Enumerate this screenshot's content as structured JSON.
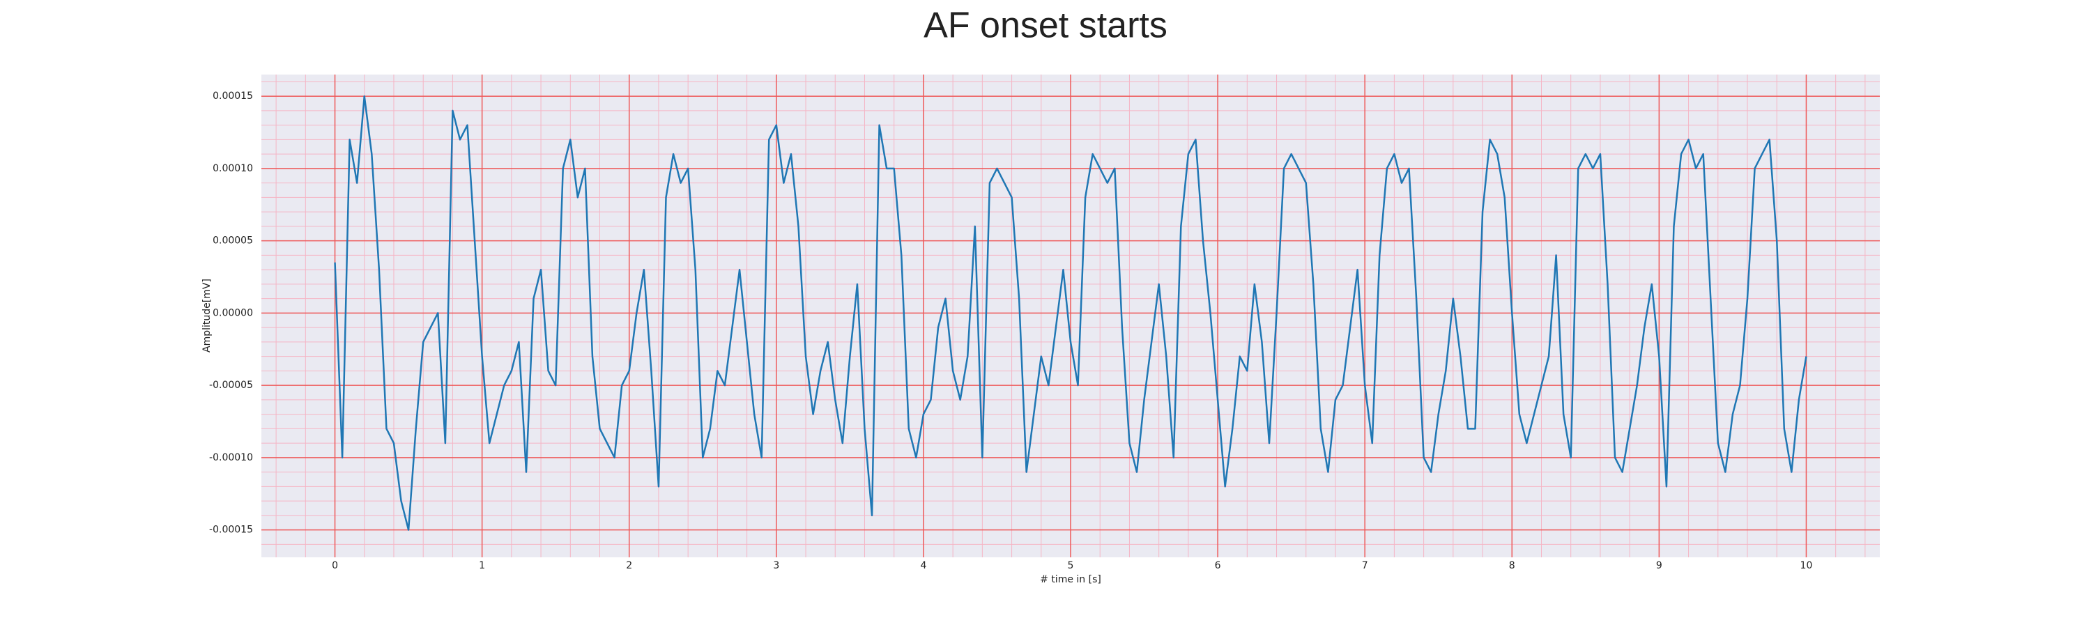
{
  "chart_data": {
    "type": "line",
    "title": "AF onset starts",
    "x_label": "# time in [s]",
    "y_label": "Amplitude[mV]",
    "x": [
      0,
      0.05,
      0.1,
      0.15,
      0.2,
      0.25,
      0.3,
      0.35,
      0.4,
      0.45,
      0.5,
      0.55,
      0.6,
      0.65,
      0.7,
      0.75,
      0.8,
      0.85,
      0.9,
      0.95,
      1,
      1.05,
      1.1,
      1.15,
      1.2,
      1.25,
      1.3,
      1.35,
      1.4,
      1.45,
      1.5,
      1.55,
      1.6,
      1.65,
      1.7,
      1.75,
      1.8,
      1.85,
      1.9,
      1.95,
      2,
      2.05,
      2.1,
      2.15,
      2.2,
      2.25,
      2.3,
      2.35,
      2.4,
      2.45,
      2.5,
      2.55,
      2.6,
      2.65,
      2.7,
      2.75,
      2.8,
      2.85,
      2.9,
      2.95,
      3,
      3.05,
      3.1,
      3.15,
      3.2,
      3.25,
      3.3,
      3.35,
      3.4,
      3.45,
      3.5,
      3.55,
      3.6,
      3.65,
      3.7,
      3.75,
      3.8,
      3.85,
      3.9,
      3.95,
      4,
      4.05,
      4.1,
      4.15,
      4.2,
      4.25,
      4.3,
      4.35,
      4.4,
      4.45,
      4.5,
      4.55,
      4.6,
      4.65,
      4.7,
      4.75,
      4.8,
      4.85,
      4.9,
      4.95,
      5,
      5.05,
      5.1,
      5.15,
      5.2,
      5.25,
      5.3,
      5.35,
      5.4,
      5.45,
      5.5,
      5.55,
      5.6,
      5.65,
      5.7,
      5.75,
      5.8,
      5.85,
      5.9,
      5.95,
      6,
      6.05,
      6.1,
      6.15,
      6.2,
      6.25,
      6.3,
      6.35,
      6.4,
      6.45,
      6.5,
      6.55,
      6.6,
      6.65,
      6.7,
      6.75,
      6.8,
      6.85,
      6.9,
      6.95,
      7,
      7.05,
      7.1,
      7.15,
      7.2,
      7.25,
      7.3,
      7.35,
      7.4,
      7.45,
      7.5,
      7.55,
      7.6,
      7.65,
      7.7,
      7.75,
      7.8,
      7.85,
      7.9,
      7.95,
      8,
      8.05,
      8.1,
      8.15,
      8.2,
      8.25,
      8.3,
      8.35,
      8.4,
      8.45,
      8.5,
      8.55,
      8.6,
      8.65,
      8.7,
      8.75,
      8.8,
      8.85,
      8.9,
      8.95,
      9,
      9.05,
      9.1,
      9.15,
      9.2,
      9.25,
      9.3,
      9.35,
      9.4,
      9.45,
      9.5,
      9.55,
      9.6,
      9.65,
      9.7,
      9.75,
      9.8,
      9.85,
      9.9,
      9.95,
      10
    ],
    "values": [
      3.5e-05,
      -0.0001,
      0.00012,
      9e-05,
      0.00015,
      0.00011,
      3e-05,
      -8e-05,
      -9e-05,
      -0.00013,
      -0.00015,
      -8e-05,
      -2e-05,
      -1e-05,
      0,
      -9e-05,
      0.00014,
      0.00012,
      0.00013,
      5e-05,
      -3e-05,
      -9e-05,
      -7e-05,
      -5e-05,
      -4e-05,
      -2e-05,
      -0.00011,
      1e-05,
      3e-05,
      -4e-05,
      -5e-05,
      0.0001,
      0.00012,
      8e-05,
      0.0001,
      -3e-05,
      -8e-05,
      -9e-05,
      -0.0001,
      -5e-05,
      -4e-05,
      0,
      3e-05,
      -4e-05,
      -0.00012,
      8e-05,
      0.00011,
      9e-05,
      0.0001,
      3e-05,
      -0.0001,
      -8e-05,
      -4e-05,
      -5e-05,
      -1e-05,
      3e-05,
      -2e-05,
      -7e-05,
      -0.0001,
      0.00012,
      0.00013,
      9e-05,
      0.00011,
      6e-05,
      -3e-05,
      -7e-05,
      -4e-05,
      -2e-05,
      -6e-05,
      -9e-05,
      -3e-05,
      2e-05,
      -8e-05,
      -0.00014,
      0.00013,
      0.0001,
      0.0001,
      4e-05,
      -8e-05,
      -0.0001,
      -7e-05,
      -6e-05,
      -1e-05,
      1e-05,
      -4e-05,
      -6e-05,
      -3e-05,
      6e-05,
      -0.0001,
      9e-05,
      0.0001,
      9e-05,
      8e-05,
      1e-05,
      -0.00011,
      -7e-05,
      -3e-05,
      -5e-05,
      -1e-05,
      3e-05,
      -2e-05,
      -5e-05,
      8e-05,
      0.00011,
      0.0001,
      9e-05,
      0.0001,
      -1e-05,
      -9e-05,
      -0.00011,
      -6e-05,
      -2e-05,
      2e-05,
      -3e-05,
      -0.0001,
      6e-05,
      0.00011,
      0.00012,
      5e-05,
      0,
      -6e-05,
      -0.00012,
      -8e-05,
      -3e-05,
      -4e-05,
      2e-05,
      -2e-05,
      -9e-05,
      0,
      0.0001,
      0.00011,
      0.0001,
      9e-05,
      2e-05,
      -8e-05,
      -0.00011,
      -6e-05,
      -5e-05,
      -1e-05,
      3e-05,
      -5e-05,
      -9e-05,
      4e-05,
      0.0001,
      0.00011,
      9e-05,
      0.0001,
      1e-05,
      -0.0001,
      -0.00011,
      -7e-05,
      -4e-05,
      1e-05,
      -3e-05,
      -8e-05,
      -8e-05,
      7e-05,
      0.00012,
      0.00011,
      8e-05,
      0,
      -7e-05,
      -9e-05,
      -7e-05,
      -5e-05,
      -3e-05,
      4e-05,
      -7e-05,
      -0.0001,
      0.0001,
      0.00011,
      0.0001,
      0.00011,
      2e-05,
      -0.0001,
      -0.00011,
      -8e-05,
      -5e-05,
      -1e-05,
      2e-05,
      -3e-05,
      -0.00012,
      6e-05,
      0.00011,
      0.00012,
      0.0001,
      0.00011,
      1e-05,
      -9e-05,
      -0.00011,
      -7e-05,
      -5e-05,
      1e-05,
      0.0001,
      0.00011,
      0.00012,
      5e-05,
      -8e-05,
      -0.00011,
      -6e-05,
      -3e-05
    ],
    "color": "#1f77b4",
    "xlim": [
      -0.5,
      10.5
    ],
    "xticks": [
      0,
      1,
      2,
      3,
      4,
      5,
      6,
      7,
      8,
      9,
      10
    ],
    "ylim": [
      -0.000169,
      0.000165
    ],
    "yticks": [
      -0.00015,
      {
        "value": -0.0001,
        "label": "-0.00010"
      },
      -5e-05,
      {
        "value": 0,
        "label": "0.00000"
      },
      5e-05,
      {
        "value": 0.0001,
        "label": "0.00010"
      },
      0.00015
    ],
    "grid": true,
    "minor_grid": true
  }
}
